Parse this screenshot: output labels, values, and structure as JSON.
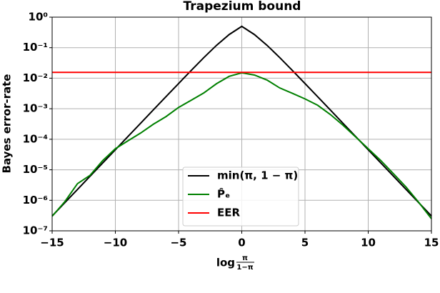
{
  "chart_data": {
    "type": "line",
    "title": "Trapezium bound",
    "y_label": "Bayes error-rate",
    "x_label": {
      "text": "log",
      "numerator": "π",
      "denominator": "1−π"
    },
    "log_y": true,
    "grid": true,
    "legend": "lower center",
    "xlim": [
      -15,
      15
    ],
    "xticks": [
      {
        "value": -15,
        "label": "−15"
      },
      {
        "value": -10,
        "label": "−10"
      },
      {
        "value": -5,
        "label": "−5"
      },
      0,
      5,
      10,
      15
    ],
    "ylim": [
      1e-07,
      1
    ],
    "yticks": [
      {
        "value": 1e-07,
        "label": "10⁻⁷"
      },
      {
        "value": 1e-06,
        "label": "10⁻⁶"
      },
      {
        "value": 1e-05,
        "label": "10⁻⁵"
      },
      {
        "value": 0.0001,
        "label": "10⁻⁴"
      },
      {
        "value": 0.001,
        "label": "10⁻³"
      },
      {
        "value": 0.01,
        "label": "10⁻²"
      },
      {
        "value": 0.1,
        "label": "10⁻¹"
      },
      {
        "value": 1,
        "label": "10⁰"
      }
    ],
    "series": [
      {
        "name": "min(π, 1 − π)",
        "color": "#000000",
        "x": [
          -15,
          -14,
          -13,
          -12,
          -11,
          -10,
          -9,
          -8,
          -7,
          -6,
          -5,
          -4,
          -3,
          -2,
          -1,
          0,
          1,
          2,
          3,
          4,
          5,
          6,
          7,
          8,
          9,
          10,
          11,
          12,
          13,
          14,
          15
        ],
        "values": [
          3.06e-07,
          8.3e-07,
          2.26e-06,
          6.14e-06,
          1.67e-05,
          4.54e-05,
          0.0001234,
          0.000335,
          0.000911,
          0.002473,
          0.006693,
          0.01799,
          0.04743,
          0.1192,
          0.2689,
          0.5,
          0.2689,
          0.1192,
          0.04743,
          0.01799,
          0.006693,
          0.002473,
          0.000911,
          0.000335,
          0.0001234,
          4.54e-05,
          1.67e-05,
          6.14e-06,
          2.26e-06,
          8.3e-07,
          3.06e-07
        ]
      },
      {
        "name": "P̂ₑ",
        "color": "#008000",
        "x": [
          -15,
          -14,
          -13,
          -12,
          -11,
          -10,
          -9,
          -8,
          -7,
          -6,
          -5,
          -4,
          -3,
          -2,
          -1,
          0,
          1,
          2,
          3,
          4,
          5,
          6,
          7,
          8,
          9,
          10,
          11,
          12,
          13,
          14,
          15
        ],
        "values": [
          3e-07,
          9e-07,
          3.5e-06,
          6.6e-06,
          2e-05,
          4.9e-05,
          8.9e-05,
          0.00016,
          0.00031,
          0.00055,
          0.0011,
          0.0019,
          0.0033,
          0.0066,
          0.0115,
          0.015,
          0.0127,
          0.0087,
          0.0048,
          0.0032,
          0.0021,
          0.0013,
          0.00065,
          0.00029,
          0.00012,
          4.9e-05,
          2e-05,
          7.4e-06,
          2.7e-06,
          8.5e-07,
          2.5e-07
        ]
      },
      {
        "name": "EER",
        "color": "#ff0000",
        "x": [
          -15,
          15
        ],
        "values": [
          0.0155,
          0.0155
        ]
      }
    ]
  }
}
